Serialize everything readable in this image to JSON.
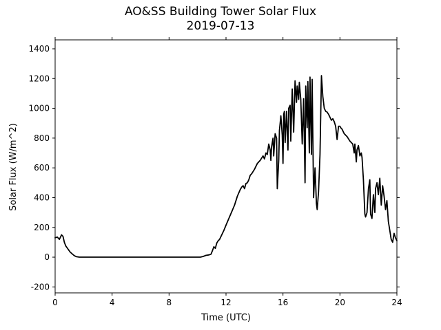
{
  "chart_data": {
    "type": "line",
    "title": "AO&SS Building Tower Solar Flux",
    "subtitle": "2019-07-13",
    "xlabel": "Time (UTC)",
    "ylabel": "Solar Flux (W/m^2)",
    "xlim": [
      0,
      24
    ],
    "ylim": [
      -240,
      1460
    ],
    "xticks": [
      0,
      4,
      8,
      12,
      16,
      20,
      24
    ],
    "yticks": [
      -200,
      0,
      200,
      400,
      600,
      800,
      1000,
      1200,
      1400
    ],
    "grid": false,
    "line_color": "#000000",
    "series": [
      {
        "x": [
          0.0,
          0.15,
          0.3,
          0.45,
          0.55,
          0.65,
          0.75,
          0.9,
          1.05,
          1.2,
          1.35,
          1.5,
          1.7,
          2.0,
          4.0,
          8.0,
          10.2,
          10.4,
          10.6,
          10.8,
          10.95,
          11.05,
          11.15,
          11.25,
          11.35,
          11.45,
          11.55,
          11.7,
          11.85,
          12.0,
          12.2,
          12.4,
          12.6,
          12.8,
          13.0,
          13.1,
          13.2,
          13.3,
          13.4,
          13.5,
          13.6,
          13.7,
          13.8,
          14.0,
          14.2,
          14.4,
          14.6,
          14.7,
          14.8,
          14.9,
          15.0,
          15.1,
          15.15,
          15.2,
          15.3,
          15.35,
          15.45,
          15.55,
          15.6,
          15.7,
          15.75,
          15.85,
          15.95,
          16.0,
          16.05,
          16.1,
          16.15,
          16.25,
          16.35,
          16.4,
          16.5,
          16.55,
          16.65,
          16.75,
          16.85,
          16.95,
          17.0,
          17.1,
          17.15,
          17.25,
          17.35,
          17.45,
          17.55,
          17.6,
          17.7,
          17.75,
          17.85,
          17.9,
          18.0,
          18.05,
          18.15,
          18.25,
          18.35,
          18.4,
          18.5,
          18.6,
          18.7,
          18.8,
          18.9,
          19.0,
          19.1,
          19.2,
          19.3,
          19.4,
          19.5,
          19.6,
          19.7,
          19.8,
          19.9,
          20.0,
          20.05,
          20.15,
          20.3,
          20.5,
          20.7,
          20.9,
          21.0,
          21.05,
          21.15,
          21.2,
          21.3,
          21.4,
          21.5,
          21.55,
          21.65,
          21.75,
          21.8,
          21.9,
          22.0,
          22.1,
          22.15,
          22.25,
          22.35,
          22.45,
          22.5,
          22.6,
          22.7,
          22.8,
          22.9,
          23.0,
          23.1,
          23.2,
          23.3,
          23.4,
          23.5,
          23.6,
          23.7,
          23.8,
          23.9,
          24.0
        ],
        "y": [
          130,
          135,
          120,
          150,
          140,
          100,
          75,
          55,
          35,
          22,
          10,
          3,
          0,
          0,
          0,
          0,
          0,
          5,
          12,
          15,
          20,
          45,
          70,
          60,
          95,
          110,
          120,
          150,
          180,
          215,
          260,
          305,
          350,
          410,
          455,
          470,
          480,
          460,
          495,
          500,
          520,
          550,
          560,
          590,
          630,
          650,
          680,
          660,
          700,
          690,
          760,
          720,
          650,
          740,
          800,
          680,
          830,
          800,
          460,
          650,
          850,
          950,
          820,
          630,
          960,
          980,
          770,
          980,
          720,
          1000,
          1020,
          780,
          1130,
          840,
          1185,
          1040,
          1150,
          1060,
          1175,
          1060,
          760,
          1065,
          500,
          1150,
          870,
          1180,
          700,
          1210,
          690,
          1195,
          400,
          600,
          360,
          320,
          440,
          690,
          1220,
          1080,
          1000,
          980,
          975,
          960,
          940,
          920,
          930,
          910,
          880,
          790,
          880,
          880,
          870,
          860,
          830,
          810,
          780,
          760,
          700,
          760,
          640,
          720,
          750,
          680,
          700,
          670,
          520,
          290,
          270,
          300,
          460,
          520,
          290,
          260,
          420,
          300,
          460,
          500,
          420,
          530,
          350,
          480,
          410,
          320,
          380,
          240,
          180,
          120,
          100,
          160,
          130,
          110
        ]
      }
    ]
  }
}
